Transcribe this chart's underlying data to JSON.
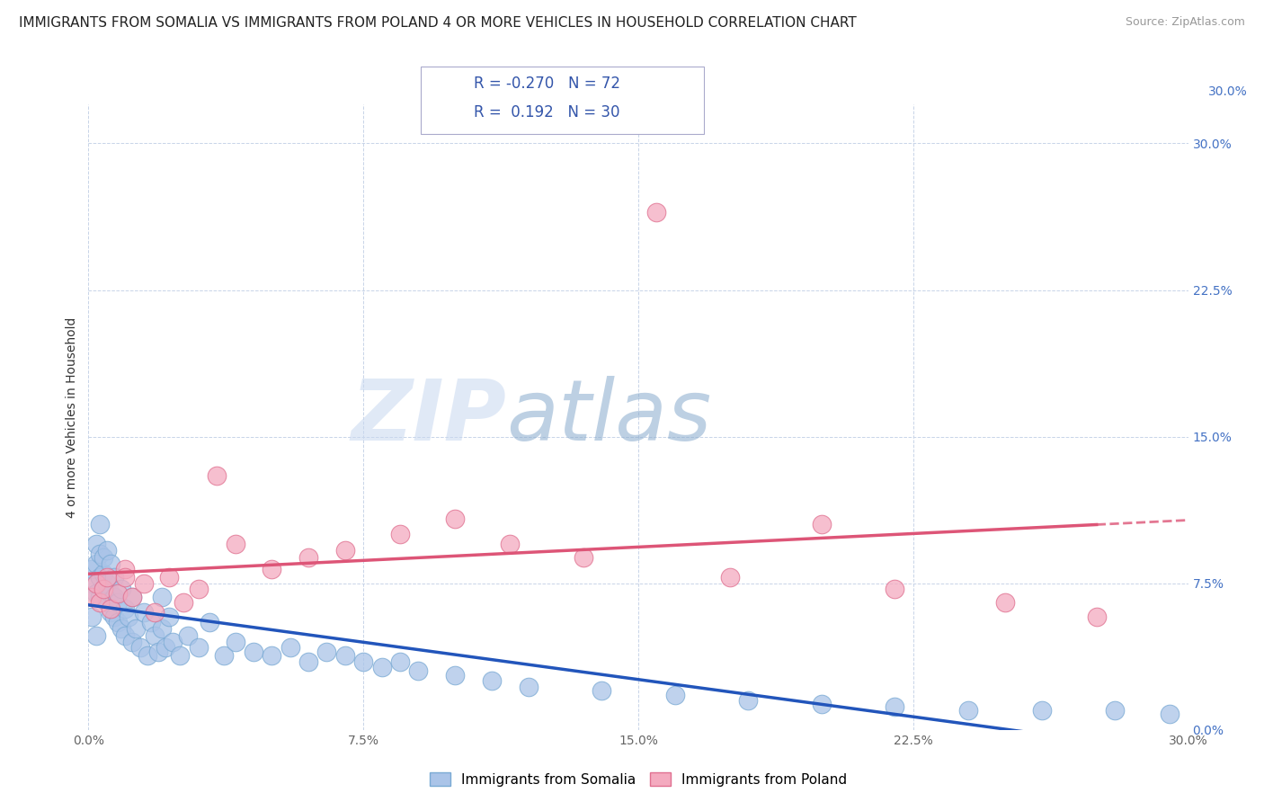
{
  "title": "IMMIGRANTS FROM SOMALIA VS IMMIGRANTS FROM POLAND 4 OR MORE VEHICLES IN HOUSEHOLD CORRELATION CHART",
  "source": "Source: ZipAtlas.com",
  "ylabel": "4 or more Vehicles in Household",
  "xlim": [
    0.0,
    0.3
  ],
  "ylim": [
    0.0,
    0.32
  ],
  "xticks": [
    0.0,
    0.075,
    0.15,
    0.225,
    0.3
  ],
  "xticklabels": [
    "0.0%",
    "7.5%",
    "15.0%",
    "22.5%",
    "30.0%"
  ],
  "yticks": [
    0.0,
    0.075,
    0.15,
    0.225,
    0.3
  ],
  "yticklabels": [
    "0.0%",
    "7.5%",
    "15.0%",
    "22.5%",
    "30.0%"
  ],
  "somalia_color": "#aac4e8",
  "poland_color": "#f4aabf",
  "somalia_edge": "#7aaad4",
  "poland_edge": "#e07090",
  "trend_somalia_color": "#2255bb",
  "trend_poland_color": "#dd5577",
  "R_somalia": -0.27,
  "N_somalia": 72,
  "R_poland": 0.192,
  "N_poland": 30,
  "somalia_x": [
    0.001,
    0.001,
    0.002,
    0.002,
    0.002,
    0.003,
    0.003,
    0.003,
    0.003,
    0.004,
    0.004,
    0.004,
    0.005,
    0.005,
    0.005,
    0.006,
    0.006,
    0.006,
    0.007,
    0.007,
    0.007,
    0.008,
    0.008,
    0.009,
    0.009,
    0.01,
    0.01,
    0.011,
    0.012,
    0.012,
    0.013,
    0.014,
    0.015,
    0.016,
    0.017,
    0.018,
    0.019,
    0.02,
    0.021,
    0.022,
    0.023,
    0.025,
    0.027,
    0.03,
    0.033,
    0.037,
    0.04,
    0.045,
    0.05,
    0.055,
    0.06,
    0.065,
    0.07,
    0.075,
    0.08,
    0.085,
    0.09,
    0.1,
    0.11,
    0.12,
    0.14,
    0.16,
    0.18,
    0.2,
    0.22,
    0.24,
    0.26,
    0.28,
    0.295,
    0.002,
    0.001,
    0.02
  ],
  "somalia_y": [
    0.075,
    0.082,
    0.07,
    0.085,
    0.095,
    0.068,
    0.078,
    0.09,
    0.105,
    0.072,
    0.08,
    0.088,
    0.065,
    0.075,
    0.092,
    0.06,
    0.07,
    0.085,
    0.058,
    0.068,
    0.078,
    0.055,
    0.065,
    0.052,
    0.072,
    0.048,
    0.062,
    0.058,
    0.045,
    0.068,
    0.052,
    0.042,
    0.06,
    0.038,
    0.055,
    0.048,
    0.04,
    0.052,
    0.042,
    0.058,
    0.045,
    0.038,
    0.048,
    0.042,
    0.055,
    0.038,
    0.045,
    0.04,
    0.038,
    0.042,
    0.035,
    0.04,
    0.038,
    0.035,
    0.032,
    0.035,
    0.03,
    0.028,
    0.025,
    0.022,
    0.02,
    0.018,
    0.015,
    0.013,
    0.012,
    0.01,
    0.01,
    0.01,
    0.008,
    0.048,
    0.058,
    0.068
  ],
  "poland_x": [
    0.001,
    0.002,
    0.003,
    0.004,
    0.005,
    0.006,
    0.008,
    0.01,
    0.012,
    0.015,
    0.018,
    0.022,
    0.026,
    0.03,
    0.035,
    0.04,
    0.05,
    0.06,
    0.07,
    0.085,
    0.1,
    0.115,
    0.135,
    0.155,
    0.175,
    0.2,
    0.22,
    0.25,
    0.275,
    0.01
  ],
  "poland_y": [
    0.068,
    0.075,
    0.065,
    0.072,
    0.078,
    0.062,
    0.07,
    0.082,
    0.068,
    0.075,
    0.06,
    0.078,
    0.065,
    0.072,
    0.13,
    0.095,
    0.082,
    0.088,
    0.092,
    0.1,
    0.108,
    0.095,
    0.088,
    0.265,
    0.078,
    0.105,
    0.072,
    0.065,
    0.058,
    0.078
  ],
  "watermark_zip": "ZIP",
  "watermark_atlas": "atlas",
  "background_color": "#ffffff",
  "grid_color": "#c8d4e8",
  "title_fontsize": 11,
  "axis_label_fontsize": 10,
  "tick_fontsize": 10,
  "right_tick_color": "#4472c4",
  "legend_label_somalia": "Immigrants from Somalia",
  "legend_label_poland": "Immigrants from Poland"
}
